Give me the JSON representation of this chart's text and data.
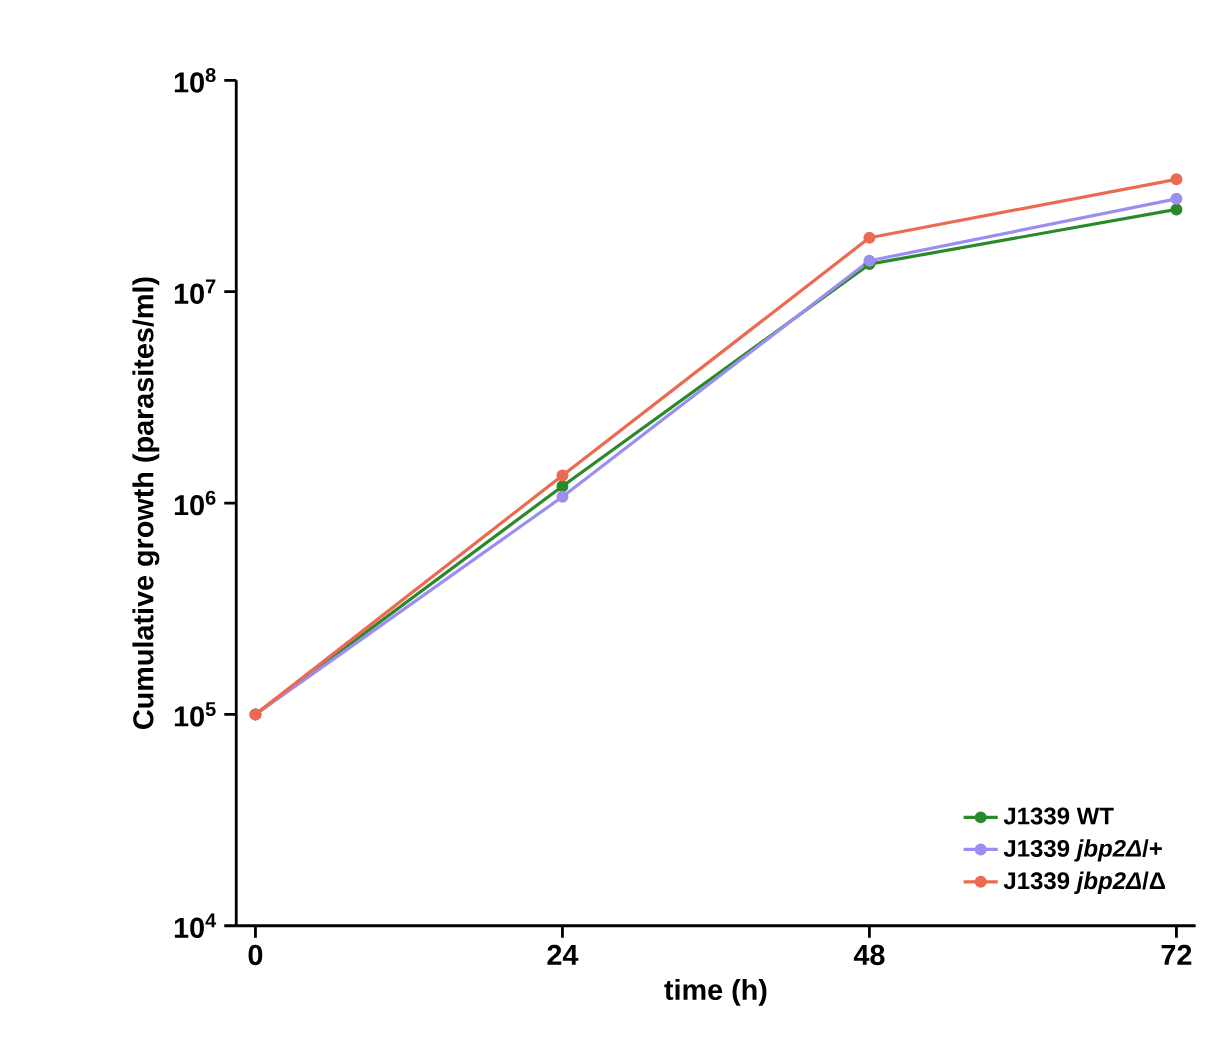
{
  "chart_data": {
    "type": "line",
    "xlabel": "time (h)",
    "ylabel": "Cumulative growth (parasites/ml)",
    "x": [
      0,
      24,
      48,
      72
    ],
    "series": [
      {
        "name": "J1339 WT",
        "color": "#2a8a2a",
        "values": [
          100000,
          1200000,
          13500000,
          24500000
        ]
      },
      {
        "name": "J1339 *jbp2Δ*/+",
        "color": "#9a8ff0",
        "values": [
          100000,
          1070000,
          14000000,
          27500000
        ]
      },
      {
        "name": "J1339 *jbp2Δ*/Δ",
        "color": "#ec6a52",
        "values": [
          100000,
          1350000,
          18000000,
          34000000
        ]
      }
    ],
    "xlim": [
      -1.5,
      73.5
    ],
    "xticks": [
      0,
      24,
      48,
      72
    ],
    "ylim": [
      10000,
      100000000
    ],
    "yticks": [
      {
        "value": 10000,
        "label": "10$^{4}$"
      },
      {
        "value": 100000,
        "label": "10$^{5}$"
      },
      {
        "value": 1000000,
        "label": "10$^{6}$"
      },
      {
        "value": 10000000,
        "label": "10$^{7}$"
      },
      {
        "value": 100000000,
        "label": "10$^{8}$"
      }
    ],
    "log": "y",
    "grid": false,
    "legend": "bottom right",
    "marker": "circle",
    "line_style": "solid"
  }
}
